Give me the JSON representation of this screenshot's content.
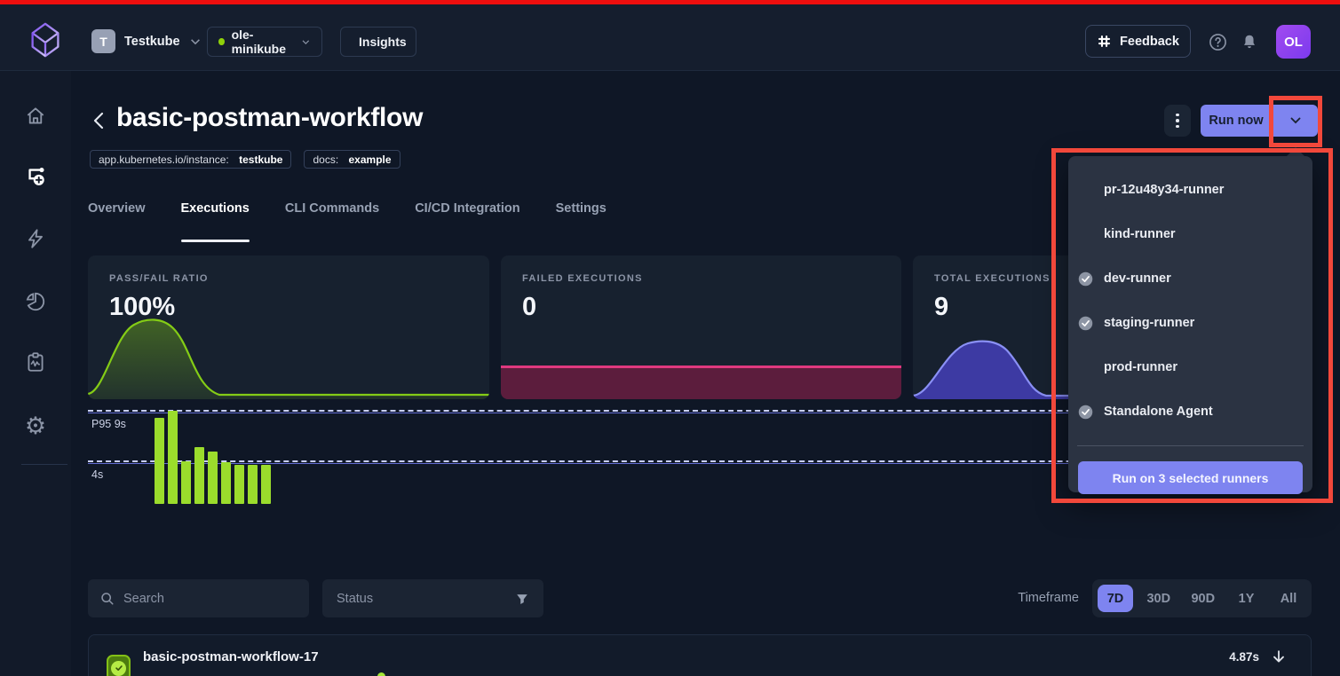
{
  "topbar": {
    "org": {
      "initial": "T",
      "name": "Testkube"
    },
    "environment": {
      "name": "ole-minikube",
      "status_color": "#8fd10a"
    },
    "insights_label": "Insights",
    "feedback_label": "Feedback",
    "avatar": "OL"
  },
  "sidebar": {
    "items": [
      "home",
      "workflows",
      "triggers",
      "insights",
      "status",
      "settings"
    ],
    "active_item": "workflows"
  },
  "header": {
    "title": "basic-postman-workflow",
    "labels": [
      {
        "key": "app.kubernetes.io/instance:",
        "value": "testkube"
      },
      {
        "key": "docs:",
        "value": "example"
      }
    ],
    "run_now_label": "Run now"
  },
  "tabs": [
    {
      "label": "Overview",
      "active": false
    },
    {
      "label": "Executions",
      "active": true
    },
    {
      "label": "CLI Commands",
      "active": false
    },
    {
      "label": "CI/CD Integration",
      "active": false
    },
    {
      "label": "Settings",
      "active": false
    }
  ],
  "stats": {
    "pass_fail": {
      "label": "PASS/FAIL RATIO",
      "value": "100%",
      "accent": "#84cc16"
    },
    "failed": {
      "label": "FAILED EXECUTIONS",
      "value": "0",
      "accent": "#e0397f"
    },
    "total": {
      "label": "TOTAL EXECUTIONS",
      "value": "9",
      "accent": "#8a90f5"
    }
  },
  "chart_data": [
    {
      "id": "pass-fail-sparkline",
      "type": "area",
      "title": "PASS/FAIL RATIO",
      "x": [
        0,
        1,
        2,
        3,
        4,
        5,
        6,
        7,
        8,
        9,
        10
      ],
      "values": [
        0,
        0.15,
        0.75,
        1,
        0.8,
        0.25,
        0.02,
        0,
        0,
        0,
        0
      ],
      "color": "#84cc16",
      "axes": "hidden"
    },
    {
      "id": "failed-executions-band",
      "type": "area",
      "title": "FAILED EXECUTIONS",
      "x": [
        0,
        1
      ],
      "values": [
        0,
        0
      ],
      "color": "#e0397f",
      "axes": "hidden"
    },
    {
      "id": "total-executions-sparkline",
      "type": "area",
      "title": "TOTAL EXECUTIONS",
      "x": [
        0,
        1,
        2,
        3,
        4,
        5,
        6,
        7,
        8,
        9,
        10
      ],
      "values": [
        0,
        0.2,
        0.8,
        1,
        0.75,
        0.2,
        0.02,
        0,
        0,
        0,
        0
      ],
      "color": "#8a90f5",
      "axes": "hidden"
    },
    {
      "id": "execution-durations",
      "type": "bar",
      "title": "",
      "categories": [
        "1",
        "2",
        "3",
        "4",
        "5",
        "6",
        "7",
        "8",
        "9"
      ],
      "values": [
        8.2,
        8.9,
        4.1,
        5.4,
        5.0,
        4.0,
        3.7,
        3.7,
        3.7
      ],
      "unit": "s",
      "markers": [
        {
          "label": "P95 9s",
          "value": 9
        },
        {
          "label": "4s",
          "value": 4
        }
      ],
      "bar_color": "#9bdc2c",
      "ylim": [
        0,
        9.6
      ],
      "grid": "dashed-markers-only"
    }
  ],
  "runner_dropdown": {
    "items": [
      {
        "label": "pr-12u48y34-runner",
        "checked": false
      },
      {
        "label": "kind-runner",
        "checked": false
      },
      {
        "label": "dev-runner",
        "checked": true
      },
      {
        "label": "staging-runner",
        "checked": true
      },
      {
        "label": "prod-runner",
        "checked": false
      },
      {
        "label": "Standalone Agent",
        "checked": true
      }
    ],
    "action_label": "Run on 3 selected runners"
  },
  "filters": {
    "search_placeholder": "Search",
    "status_label": "Status",
    "timeframe_label": "Timeframe",
    "timeframes": [
      {
        "label": "7D",
        "active": true
      },
      {
        "label": "30D",
        "active": false
      },
      {
        "label": "90D",
        "active": false
      },
      {
        "label": "1Y",
        "active": false
      },
      {
        "label": "All",
        "active": false
      }
    ]
  },
  "executions_list": {
    "row": {
      "name": "basic-postman-workflow-17",
      "duration": "4.87s",
      "status": "passed"
    }
  }
}
